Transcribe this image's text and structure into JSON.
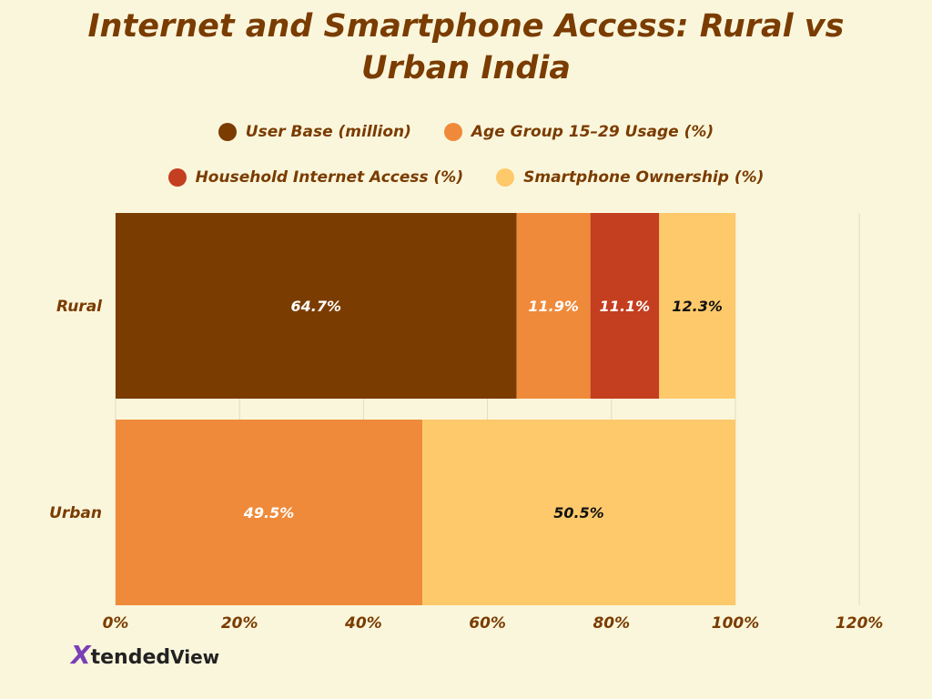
{
  "chart_data": {
    "type": "bar",
    "orientation": "horizontal",
    "stacked": "percent",
    "title": "Internet and Smartphone Access: Rural vs Urban India",
    "categories": [
      "Rural",
      "Urban"
    ],
    "series": [
      {
        "name": "User Base (million)",
        "color": "#7a3c00",
        "values": [
          64.7,
          0
        ]
      },
      {
        "name": "Age Group 15–29 Usage (%)",
        "color": "#ef8a3a",
        "values": [
          11.9,
          49.5
        ]
      },
      {
        "name": "Household Internet Access (%)",
        "color": "#c43e20",
        "values": [
          11.1,
          0
        ]
      },
      {
        "name": "Smartphone Ownership (%)",
        "color": "#fec96a",
        "values": [
          12.3,
          50.5
        ]
      }
    ],
    "data_labels": [
      [
        "64.7%",
        "11.9%",
        "11.1%",
        "12.3%"
      ],
      [
        "",
        "49.5%",
        "",
        "50.5%"
      ]
    ],
    "xlim": [
      0,
      120
    ],
    "xticks": [
      "0%",
      "20%",
      "40%",
      "60%",
      "80%",
      "100%",
      "120%"
    ],
    "grid": true,
    "legend_position": "top"
  },
  "logo": {
    "text": "XtendedView"
  }
}
